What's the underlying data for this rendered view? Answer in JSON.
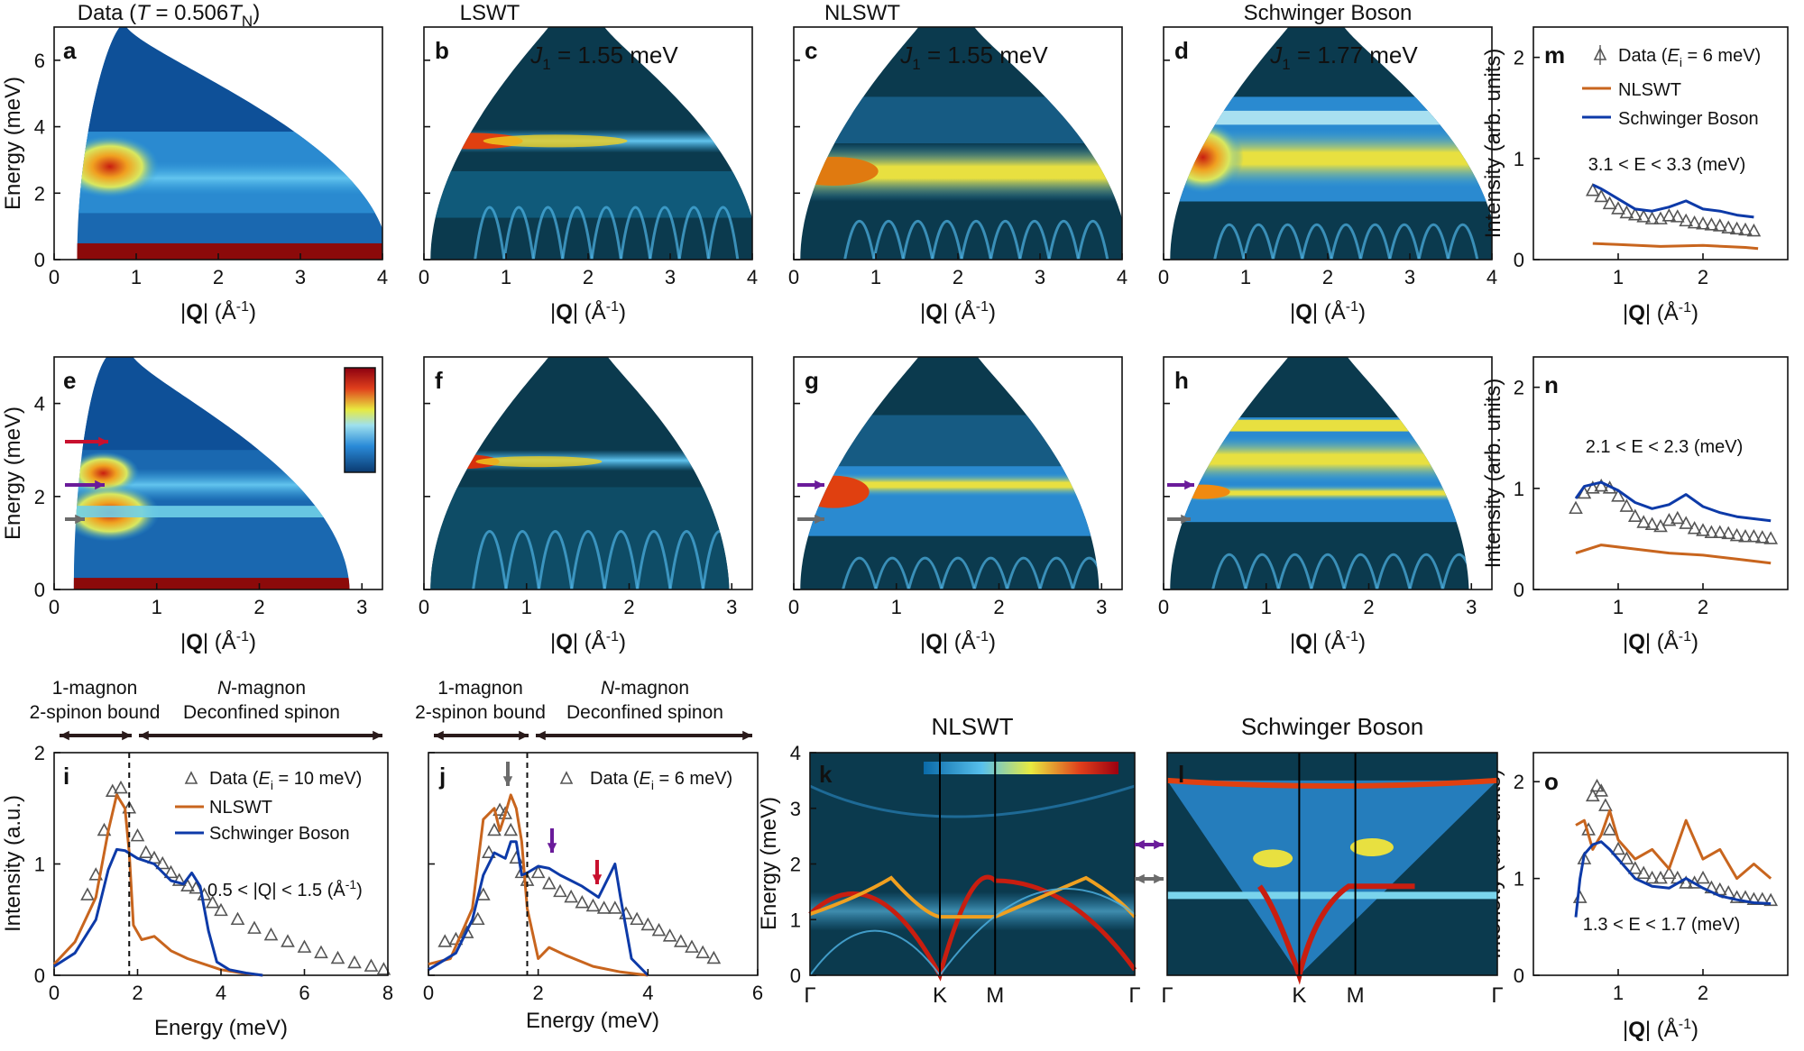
{
  "colors": {
    "ink": "#111111",
    "orange": "#c8651e",
    "blue": "#0d3aa8",
    "gray": "#6b6b6b",
    "purple": "#6a1b9a",
    "red": "#c8102e",
    "bg": "#0b3a4e"
  },
  "top_titles": [
    "Data (T = 0.506T",
    "N",
    ")",
    "LSWT",
    "NLSWT",
    "Schwinger Boson"
  ],
  "panels": {
    "a": {
      "label": "a"
    },
    "b": {
      "label": "b",
      "j1_prefix": "J",
      "j1_sub": "1",
      "j1_value": " = 1.55 meV"
    },
    "c": {
      "label": "c",
      "j1_prefix": "J",
      "j1_sub": "1",
      "j1_value": " = 1.55 meV"
    },
    "d": {
      "label": "d",
      "j1_prefix": "J",
      "j1_sub": "1",
      "j1_value": " = 1.77 meV"
    },
    "e": {
      "label": "e"
    },
    "f": {
      "label": "f"
    },
    "g": {
      "label": "g"
    },
    "h": {
      "label": "h"
    },
    "i": {
      "label": "i"
    },
    "j": {
      "label": "j"
    },
    "k": {
      "label": "k"
    },
    "l": {
      "label": "l"
    },
    "m": {
      "label": "m"
    },
    "n": {
      "label": "n"
    },
    "o": {
      "label": "o"
    }
  },
  "axis_text": {
    "energy_mev": "Energy (meV)",
    "q_label_prefix": "|",
    "q_label_bold": "Q",
    "q_label_suffix": "| (Å",
    "q_label_exp": "-1",
    "q_label_end": ")",
    "intensity_arb": "Intensity (arb. units)",
    "intensity_au": "Intensity (a.u.)"
  },
  "bands": {
    "one_magnon": "1-magnon",
    "two_spinon": "2-spinon bound",
    "n_magnon_it": "N",
    "n_magnon": "-magnon",
    "deconfined": "Deconfined spinon"
  },
  "legends": {
    "data_ei10": "Data (E",
    "ei_sub": "i",
    "ei10_tail": " = 10 meV)",
    "ei6_tail": " = 6 meV)",
    "nlswt": "NLSWT",
    "sb": "Schwinger Boson"
  },
  "ranges": {
    "m": "3.1 < E < 3.3 (meV)",
    "n": "2.1 < E < 2.3 (meV)",
    "o": "1.3 < E < 1.7 (meV)",
    "i": "0.5 < |Q| < 1.5  (Å"
  },
  "kl_titles": {
    "k": "NLSWT",
    "l": "Schwinger Boson"
  },
  "bz_ticks": [
    "Γ",
    "K",
    "M",
    "Γ"
  ],
  "chart_data": [
    {
      "id": "a",
      "type": "heatmap",
      "title": "Data (T = 0.506TN)",
      "xlabel": "|Q| (Å-1)",
      "ylabel": "Energy (meV)",
      "xlim": [
        0,
        4
      ],
      "ylim": [
        0,
        7
      ],
      "xticks": [
        0,
        1,
        2,
        3,
        4
      ],
      "yticks": [
        0,
        2,
        4,
        6
      ]
    },
    {
      "id": "b",
      "type": "heatmap",
      "title": "LSWT",
      "xlim": [
        0,
        4
      ],
      "ylim": [
        0,
        7
      ],
      "xticks": [
        0,
        1,
        2,
        3,
        4
      ],
      "annotation": "J1 = 1.55 meV"
    },
    {
      "id": "c",
      "type": "heatmap",
      "title": "NLSWT",
      "xlim": [
        0,
        4
      ],
      "ylim": [
        0,
        7
      ],
      "xticks": [
        0,
        1,
        2,
        3,
        4
      ],
      "annotation": "J1 = 1.55 meV"
    },
    {
      "id": "d",
      "type": "heatmap",
      "title": "Schwinger Boson",
      "xlim": [
        0,
        4
      ],
      "ylim": [
        0,
        7
      ],
      "xticks": [
        0,
        1,
        2,
        3,
        4
      ],
      "annotation": "J1 = 1.77 meV"
    },
    {
      "id": "e",
      "type": "heatmap",
      "xlim": [
        0,
        3.2
      ],
      "ylim": [
        0,
        5
      ],
      "xticks": [
        0,
        1,
        2,
        3
      ],
      "yticks": [
        0,
        2,
        4
      ]
    },
    {
      "id": "f",
      "type": "heatmap",
      "xlim": [
        0,
        3.2
      ],
      "ylim": [
        0,
        5
      ],
      "xticks": [
        0,
        1,
        2,
        3
      ]
    },
    {
      "id": "g",
      "type": "heatmap",
      "xlim": [
        0,
        3.2
      ],
      "ylim": [
        0,
        5
      ],
      "xticks": [
        0,
        1,
        2,
        3
      ]
    },
    {
      "id": "h",
      "type": "heatmap",
      "xlim": [
        0,
        3.2
      ],
      "ylim": [
        0,
        5
      ],
      "xticks": [
        0,
        1,
        2,
        3
      ]
    },
    {
      "id": "m",
      "type": "line",
      "xlim": [
        0,
        3
      ],
      "ylim": [
        0,
        2.3
      ],
      "xticks": [
        1,
        2
      ],
      "yticks": [
        0,
        1,
        2
      ],
      "series": [
        {
          "name": "Data (Ei = 6 meV)",
          "x": [
            0.7,
            0.8,
            0.9,
            1.0,
            1.1,
            1.2,
            1.3,
            1.4,
            1.5,
            1.6,
            1.7,
            1.8,
            1.9,
            2.0,
            2.1,
            2.2,
            2.3,
            2.4,
            2.5,
            2.6
          ],
          "y": [
            0.68,
            0.62,
            0.55,
            0.5,
            0.46,
            0.44,
            0.42,
            0.4,
            0.4,
            0.43,
            0.42,
            0.38,
            0.36,
            0.35,
            0.34,
            0.33,
            0.31,
            0.3,
            0.29,
            0.28
          ]
        },
        {
          "name": "NLSWT",
          "x": [
            0.7,
            1.0,
            1.5,
            2.0,
            2.5,
            2.65
          ],
          "y": [
            0.16,
            0.15,
            0.13,
            0.14,
            0.12,
            0.11
          ]
        },
        {
          "name": "Schwinger Boson",
          "x": [
            0.7,
            0.8,
            1.0,
            1.2,
            1.4,
            1.6,
            1.8,
            2.0,
            2.2,
            2.4,
            2.6
          ],
          "y": [
            0.74,
            0.7,
            0.6,
            0.5,
            0.48,
            0.52,
            0.58,
            0.5,
            0.48,
            0.44,
            0.42
          ]
        }
      ],
      "annotation": "3.1 < E < 3.3 (meV)"
    },
    {
      "id": "n",
      "type": "line",
      "xlim": [
        0,
        3
      ],
      "ylim": [
        0,
        2.3
      ],
      "xticks": [
        1,
        2
      ],
      "yticks": [
        0,
        1,
        2
      ],
      "series": [
        {
          "name": "Data",
          "x": [
            0.5,
            0.6,
            0.7,
            0.8,
            0.9,
            1.0,
            1.1,
            1.2,
            1.3,
            1.4,
            1.5,
            1.6,
            1.7,
            1.8,
            1.9,
            2.0,
            2.1,
            2.2,
            2.3,
            2.4,
            2.5,
            2.6,
            2.7,
            2.8
          ],
          "y": [
            0.8,
            0.95,
            1.0,
            1.02,
            1.0,
            0.92,
            0.82,
            0.72,
            0.66,
            0.64,
            0.62,
            0.68,
            0.7,
            0.65,
            0.6,
            0.58,
            0.56,
            0.56,
            0.55,
            0.53,
            0.52,
            0.52,
            0.51,
            0.5
          ]
        },
        {
          "name": "NLSWT",
          "x": [
            0.5,
            0.8,
            1.2,
            1.6,
            2.0,
            2.4,
            2.8
          ],
          "y": [
            0.36,
            0.44,
            0.4,
            0.36,
            0.34,
            0.3,
            0.26
          ]
        },
        {
          "name": "Schwinger Boson",
          "x": [
            0.5,
            0.6,
            0.8,
            1.0,
            1.2,
            1.4,
            1.6,
            1.8,
            2.0,
            2.2,
            2.4,
            2.6,
            2.8
          ],
          "y": [
            0.9,
            1.02,
            1.06,
            0.98,
            0.86,
            0.8,
            0.84,
            0.94,
            0.82,
            0.76,
            0.72,
            0.7,
            0.68
          ]
        }
      ],
      "annotation": "2.1 < E < 2.3 (meV)"
    },
    {
      "id": "o",
      "type": "line",
      "xlim": [
        0,
        3
      ],
      "ylim": [
        0,
        2.3
      ],
      "xticks": [
        1,
        2
      ],
      "yticks": [
        0,
        1,
        2
      ],
      "series": [
        {
          "name": "Data",
          "x": [
            0.55,
            0.6,
            0.65,
            0.7,
            0.75,
            0.8,
            0.85,
            0.9,
            1.0,
            1.1,
            1.2,
            1.3,
            1.4,
            1.5,
            1.6,
            1.7,
            1.8,
            1.9,
            2.0,
            2.1,
            2.2,
            2.3,
            2.4,
            2.5,
            2.6,
            2.7,
            2.8
          ],
          "y": [
            0.8,
            1.2,
            1.5,
            1.85,
            1.95,
            1.9,
            1.75,
            1.5,
            1.3,
            1.2,
            1.1,
            1.05,
            1.0,
            1.0,
            1.05,
            1.0,
            0.95,
            0.95,
            1.0,
            0.9,
            0.88,
            0.85,
            0.8,
            0.8,
            0.78,
            0.78,
            0.77
          ]
        },
        {
          "name": "NLSWT",
          "x": [
            0.5,
            0.6,
            0.7,
            0.8,
            0.9,
            1.0,
            1.1,
            1.2,
            1.4,
            1.6,
            1.8,
            2.0,
            2.2,
            2.4,
            2.6,
            2.8
          ],
          "y": [
            1.55,
            1.6,
            1.3,
            1.45,
            1.7,
            1.4,
            1.3,
            1.2,
            1.3,
            1.1,
            1.6,
            1.2,
            1.3,
            1.0,
            1.15,
            1.0
          ]
        },
        {
          "name": "Schwinger Boson",
          "x": [
            0.5,
            0.55,
            0.6,
            0.7,
            0.8,
            0.9,
            1.0,
            1.2,
            1.4,
            1.6,
            1.8,
            2.0,
            2.2,
            2.4,
            2.6,
            2.8
          ],
          "y": [
            0.6,
            1.0,
            1.25,
            1.35,
            1.38,
            1.3,
            1.2,
            1.0,
            0.92,
            0.9,
            1.0,
            0.9,
            0.82,
            0.78,
            0.75,
            0.74
          ]
        }
      ],
      "annotation": "1.3 < E < 1.7 (meV)"
    },
    {
      "id": "i",
      "type": "line",
      "xlabel": "Energy (meV)",
      "ylabel": "Intensity (a.u.)",
      "xlim": [
        0,
        8
      ],
      "ylim": [
        0,
        2
      ],
      "xticks": [
        0,
        2,
        4,
        6,
        8
      ],
      "yticks": [
        0,
        1,
        2
      ],
      "series": [
        {
          "name": "Data (Ei = 10 meV)",
          "x": [
            0.8,
            1.0,
            1.2,
            1.4,
            1.6,
            1.8,
            2.0,
            2.2,
            2.4,
            2.6,
            2.8,
            3.0,
            3.2,
            3.4,
            3.6,
            3.8,
            4.0,
            4.4,
            4.8,
            5.2,
            5.6,
            6.0,
            6.4,
            6.8,
            7.2,
            7.6,
            7.9
          ],
          "y": [
            0.72,
            0.9,
            1.3,
            1.65,
            1.68,
            1.5,
            1.25,
            1.1,
            1.05,
            1.0,
            0.92,
            0.85,
            0.8,
            0.78,
            0.72,
            0.65,
            0.58,
            0.5,
            0.42,
            0.36,
            0.3,
            0.25,
            0.2,
            0.15,
            0.11,
            0.08,
            0.05
          ]
        },
        {
          "name": "NLSWT",
          "x": [
            0,
            0.5,
            1.0,
            1.3,
            1.5,
            1.7,
            1.8,
            1.9,
            2.1,
            2.4,
            2.8,
            3.2,
            3.6,
            4.0,
            4.5,
            5.0
          ],
          "y": [
            0.1,
            0.3,
            0.7,
            1.3,
            1.62,
            1.5,
            1.1,
            0.45,
            0.32,
            0.35,
            0.22,
            0.15,
            0.1,
            0.05,
            0.02,
            0.0
          ]
        },
        {
          "name": "Schwinger Boson",
          "x": [
            0,
            0.5,
            1.0,
            1.3,
            1.5,
            1.7,
            2.0,
            2.4,
            2.8,
            3.1,
            3.3,
            3.5,
            3.7,
            3.9,
            4.2,
            4.6,
            5.0
          ],
          "y": [
            0.08,
            0.2,
            0.5,
            0.95,
            1.13,
            1.12,
            1.05,
            1.0,
            0.85,
            0.82,
            0.92,
            0.8,
            0.4,
            0.12,
            0.05,
            0.02,
            0.0
          ]
        }
      ],
      "vline": 1.8,
      "annotation": "0.5 < |Q| < 1.5 (Å-1)"
    },
    {
      "id": "j",
      "type": "line",
      "xlabel": "Energy (meV)",
      "xlim": [
        0,
        6
      ],
      "ylim": [
        0,
        2
      ],
      "xticks": [
        0,
        2,
        4,
        6
      ],
      "yticks": [
        0,
        1,
        2
      ],
      "series": [
        {
          "name": "Data (Ei = 6 meV)",
          "x": [
            0.3,
            0.5,
            0.7,
            0.9,
            1.0,
            1.1,
            1.2,
            1.3,
            1.4,
            1.5,
            1.6,
            1.7,
            1.8,
            2.0,
            2.2,
            2.4,
            2.6,
            2.8,
            3.0,
            3.2,
            3.4,
            3.6,
            3.8,
            4.0,
            4.2,
            4.4,
            4.6,
            4.8,
            5.0,
            5.2
          ],
          "y": [
            0.3,
            0.32,
            0.38,
            0.5,
            0.72,
            1.1,
            1.3,
            1.48,
            1.45,
            1.3,
            1.05,
            0.92,
            0.85,
            0.92,
            0.82,
            0.75,
            0.7,
            0.65,
            0.62,
            0.6,
            0.6,
            0.55,
            0.5,
            0.45,
            0.4,
            0.35,
            0.3,
            0.25,
            0.2,
            0.15
          ]
        },
        {
          "name": "NLSWT",
          "x": [
            0,
            0.4,
            0.8,
            1.0,
            1.2,
            1.3,
            1.4,
            1.5,
            1.6,
            1.7,
            1.8,
            2.0,
            2.2,
            2.5,
            3.0,
            3.5,
            4.0
          ],
          "y": [
            0.1,
            0.15,
            0.6,
            1.4,
            1.5,
            1.3,
            1.45,
            1.62,
            1.5,
            1.2,
            0.6,
            0.15,
            0.25,
            0.18,
            0.08,
            0.03,
            0.0
          ]
        },
        {
          "name": "Schwinger Boson",
          "x": [
            0,
            0.5,
            0.8,
            1.0,
            1.2,
            1.4,
            1.5,
            1.6,
            1.7,
            1.8,
            2.0,
            2.2,
            2.4,
            2.8,
            3.1,
            3.3,
            3.4,
            3.5,
            3.7,
            4.0
          ],
          "y": [
            0.05,
            0.2,
            0.5,
            0.9,
            1.1,
            1.05,
            1.2,
            1.2,
            0.9,
            0.92,
            0.98,
            0.96,
            0.9,
            0.8,
            0.7,
            0.9,
            1.0,
            0.7,
            0.15,
            0.0
          ]
        }
      ],
      "vline": 1.8
    },
    {
      "id": "k",
      "type": "heatmap",
      "title": "NLSWT",
      "ylabel": "Energy (meV)",
      "ylim": [
        0,
        4
      ],
      "yticks": [
        0,
        1,
        2,
        3,
        4
      ],
      "xticks": [
        "Γ",
        "K",
        "M",
        "Γ"
      ]
    },
    {
      "id": "l",
      "type": "heatmap",
      "title": "Schwinger Boson",
      "xticks": [
        "Γ",
        "K",
        "M",
        "Γ"
      ]
    }
  ]
}
